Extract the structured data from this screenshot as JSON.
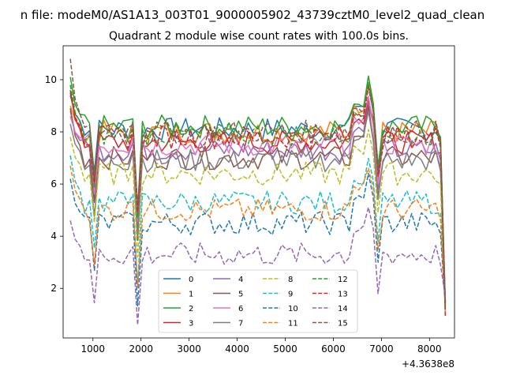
{
  "figure": {
    "suptitle": "n file: modeM0/AS1A13_003T01_9000005902_43739cztM0_level2_quad_clean",
    "title": "Quadrant 2 module wise count rates with 100.0s bins.",
    "offset_label": "+4.3638e8"
  },
  "chart_data": {
    "type": "line",
    "title": "Quadrant 2 module wise count rates with 100.0s bins.",
    "xlabel": "",
    "ylabel": "",
    "x_offset": 436380000,
    "xlim": [
      380,
      8520
    ],
    "ylim": [
      0.1,
      11.3
    ],
    "xticks": [
      1000,
      2000,
      3000,
      4000,
      5000,
      6000,
      7000,
      8000
    ],
    "yticks": [
      2,
      4,
      6,
      8,
      10
    ],
    "grid": false,
    "legend": {
      "placement": "lower center",
      "columns": 4
    },
    "x": [
      530,
      630,
      730,
      830,
      930,
      1030,
      1130,
      1230,
      1330,
      1430,
      1530,
      1630,
      1730,
      1830,
      1930,
      2030,
      2130,
      2230,
      2330,
      2430,
      2530,
      2630,
      2730,
      2830,
      2930,
      3030,
      3130,
      3230,
      3330,
      3430,
      3530,
      3630,
      3730,
      3830,
      3930,
      4030,
      4130,
      4230,
      4330,
      4430,
      4530,
      4630,
      4730,
      4830,
      4930,
      5030,
      5130,
      5230,
      5330,
      5430,
      5530,
      5630,
      5730,
      5830,
      5930,
      6030,
      6130,
      6230,
      6330,
      6430,
      6530,
      6630,
      6730,
      6830,
      6930,
      7030,
      7130,
      7230,
      7330,
      7430,
      7530,
      7630,
      7730,
      7830,
      7930,
      8030,
      8130,
      8230,
      8330
    ],
    "series": [
      {
        "name": "0",
        "color": "#1f77b4",
        "dash": "solid",
        "level": 8.1,
        "start": 9.4
      },
      {
        "name": "1",
        "color": "#ff7f0e",
        "dash": "solid",
        "level": 8.0,
        "start": 9.0
      },
      {
        "name": "2",
        "color": "#2ca02c",
        "dash": "solid",
        "level": 8.2,
        "start": 10.1
      },
      {
        "name": "3",
        "color": "#d62728",
        "dash": "solid",
        "level": 7.6,
        "start": 9.6
      },
      {
        "name": "4",
        "color": "#9467bd",
        "dash": "solid",
        "level": 7.3,
        "start": 8.8
      },
      {
        "name": "5",
        "color": "#8c564b",
        "dash": "solid",
        "level": 7.0,
        "start": 8.9
      },
      {
        "name": "6",
        "color": "#e377c2",
        "dash": "solid",
        "level": 7.5,
        "start": 8.6
      },
      {
        "name": "7",
        "color": "#7f7f7f",
        "dash": "solid",
        "level": 6.9,
        "start": 8.3
      },
      {
        "name": "8",
        "color": "#bcbd22",
        "dash": "dashed",
        "level": 6.4,
        "start": 7.8
      },
      {
        "name": "9",
        "color": "#17becf",
        "dash": "dashed",
        "level": 5.3,
        "start": 7.1
      },
      {
        "name": "10",
        "color": "#1f77b4",
        "dash": "dashed",
        "level": 4.5,
        "start": 6.2
      },
      {
        "name": "11",
        "color": "#ff7f0e",
        "dash": "dashed",
        "level": 5.0,
        "start": 6.7
      },
      {
        "name": "12",
        "color": "#2ca02c",
        "dash": "dashed",
        "level": 7.9,
        "start": 9.8
      },
      {
        "name": "13",
        "color": "#d62728",
        "dash": "dashed",
        "level": 7.8,
        "start": 9.5
      },
      {
        "name": "14",
        "color": "#9467bd",
        "dash": "dashed",
        "level": 3.3,
        "start": 4.6
      },
      {
        "name": "15",
        "color": "#8c564b",
        "dash": "dashed",
        "level": 8.0,
        "start": 10.8
      }
    ]
  }
}
